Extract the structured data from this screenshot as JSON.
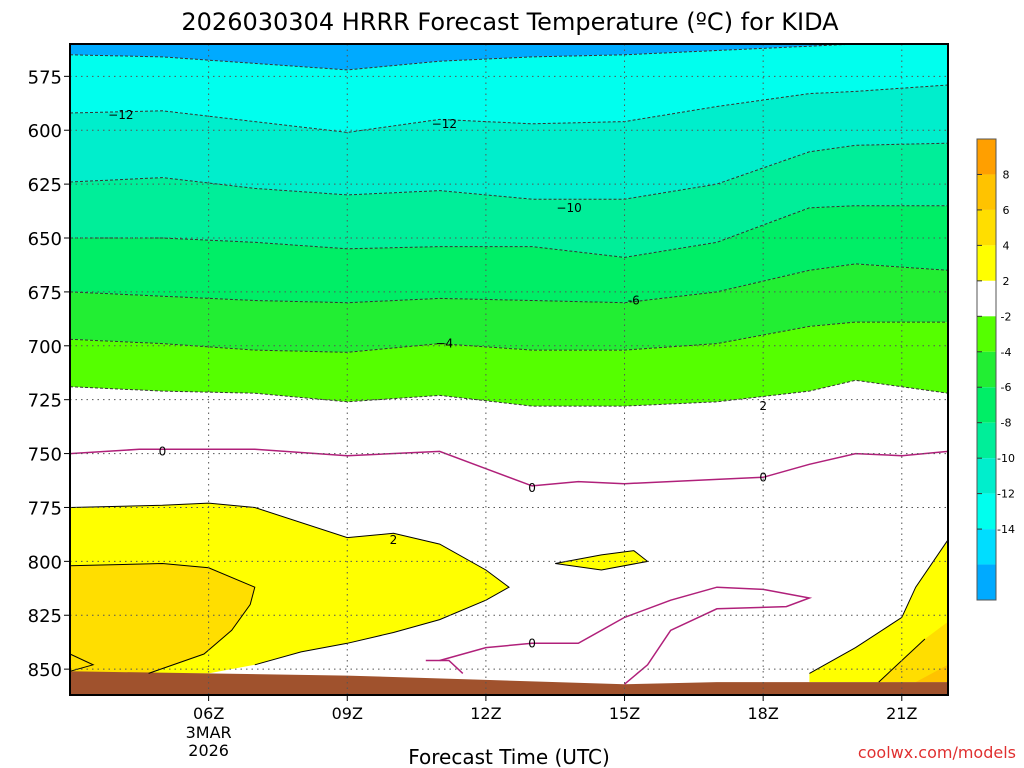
{
  "chart_data": {
    "type": "heatmap",
    "title": "2026030304 HRRR Forecast Temperature (ºC) for KIDA",
    "xlabel": "Forecast Time (UTC)",
    "ylabel": "",
    "date_lines": [
      "3MAR",
      "2026"
    ],
    "credit": "coolwx.com/models",
    "x_ticks": [
      "06Z",
      "09Z",
      "12Z",
      "15Z",
      "18Z",
      "21Z"
    ],
    "x_range_hours": [
      3,
      22
    ],
    "y_ticks": [
      575,
      600,
      625,
      650,
      675,
      700,
      725,
      750,
      775,
      800,
      825,
      850
    ],
    "y_range_mb": [
      560,
      862
    ],
    "y_scale": "pressure, inverted",
    "grid": "dotted",
    "colorbar_labels": [
      "8",
      "6",
      "4",
      "2",
      "-2",
      "-4",
      "-6",
      "-8",
      "-10",
      "-12",
      "-14"
    ],
    "colorbar_colors": [
      "#ff9f00",
      "#ffc300",
      "#ffde00",
      "#ffff00",
      "#ffffff",
      "#55ff00",
      "#22ee33",
      "#00ee66",
      "#00ee99",
      "#00eecc",
      "#00ffee",
      "#00ddff",
      "#00aaff"
    ],
    "fill_colors": {
      "ground": "#a0522d",
      "zero_line": "#b0207a",
      "dashed_line": "#333333",
      "solid_line": "#000000"
    },
    "contour_labels": [
      {
        "text": "−12",
        "hour": 4.1,
        "mb": 593
      },
      {
        "text": "−12",
        "hour": 11.1,
        "mb": 597
      },
      {
        "text": "−10",
        "hour": 13.8,
        "mb": 636
      },
      {
        "text": "−4",
        "hour": 11.1,
        "mb": 699
      },
      {
        "text": "-6",
        "hour": 15.2,
        "mb": 679
      },
      {
        "text": "2",
        "hour": 10.0,
        "mb": 790
      },
      {
        "text": "2",
        "hour": 18.0,
        "mb": 728
      },
      {
        "text": "0",
        "hour": 5.0,
        "mb": 749
      },
      {
        "text": "0",
        "hour": 13.0,
        "mb": 766
      },
      {
        "text": "0",
        "hour": 18.0,
        "mb": 761
      },
      {
        "text": "0",
        "hour": 13.0,
        "mb": 838
      }
    ]
  }
}
